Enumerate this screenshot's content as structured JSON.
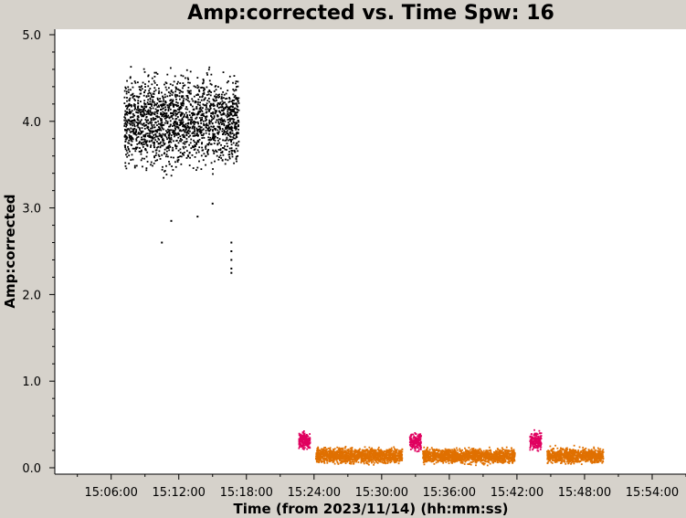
{
  "chart_data": {
    "type": "scatter",
    "title": "Amp:corrected vs. Time Spw: 16",
    "xlabel": "Time (from 2023/11/14) (hh:mm:ss)",
    "ylabel": "Amp:corrected",
    "xlim": [
      "15:01:00",
      "15:57:00"
    ],
    "ylim": [
      0.0,
      5.0
    ],
    "x_ticks": [
      "15:06:00",
      "15:12:00",
      "15:18:00",
      "15:24:00",
      "15:30:00",
      "15:36:00",
      "15:42:00",
      "15:48:00",
      "15:54:00"
    ],
    "y_ticks": [
      "0.0",
      "1.0",
      "2.0",
      "3.0",
      "4.0",
      "5.0"
    ],
    "grid": false,
    "legend": "none",
    "series": [
      {
        "color": "#000000",
        "clusters": [
          {
            "t_start": "15:07:10",
            "t_end": "15:17:20",
            "amp_low": 3.3,
            "amp_high": 4.7,
            "amp_center": 4.05
          }
        ],
        "outliers": [
          {
            "t": "15:10:30",
            "amp": 2.6
          },
          {
            "t": "15:11:20",
            "amp": 2.85
          },
          {
            "t": "15:13:40",
            "amp": 2.9
          },
          {
            "t": "15:16:40",
            "amp": 2.25
          },
          {
            "t": "15:16:40",
            "amp": 2.3
          },
          {
            "t": "15:16:40",
            "amp": 2.4
          },
          {
            "t": "15:16:40",
            "amp": 2.5
          },
          {
            "t": "15:16:40",
            "amp": 2.6
          },
          {
            "t": "15:15:00",
            "amp": 3.05
          }
        ]
      },
      {
        "color": "#e0005f",
        "clusters": [
          {
            "t_start": "15:22:40",
            "t_end": "15:23:40",
            "amp_low": 0.17,
            "amp_high": 0.46,
            "amp_center": 0.29
          },
          {
            "t_start": "15:32:30",
            "t_end": "15:33:30",
            "amp_low": 0.16,
            "amp_high": 0.44,
            "amp_center": 0.28
          },
          {
            "t_start": "15:43:10",
            "t_end": "15:44:10",
            "amp_low": 0.16,
            "amp_high": 0.45,
            "amp_center": 0.28
          }
        ]
      },
      {
        "color": "#e07000",
        "clusters": [
          {
            "t_start": "15:24:10",
            "t_end": "15:31:50",
            "amp_low": 0.02,
            "amp_high": 0.26,
            "amp_center": 0.11
          },
          {
            "t_start": "15:33:40",
            "t_end": "15:41:50",
            "amp_low": 0.02,
            "amp_high": 0.25,
            "amp_center": 0.11
          },
          {
            "t_start": "15:44:40",
            "t_end": "15:49:40",
            "amp_low": 0.02,
            "amp_high": 0.26,
            "amp_center": 0.11
          }
        ]
      }
    ]
  }
}
